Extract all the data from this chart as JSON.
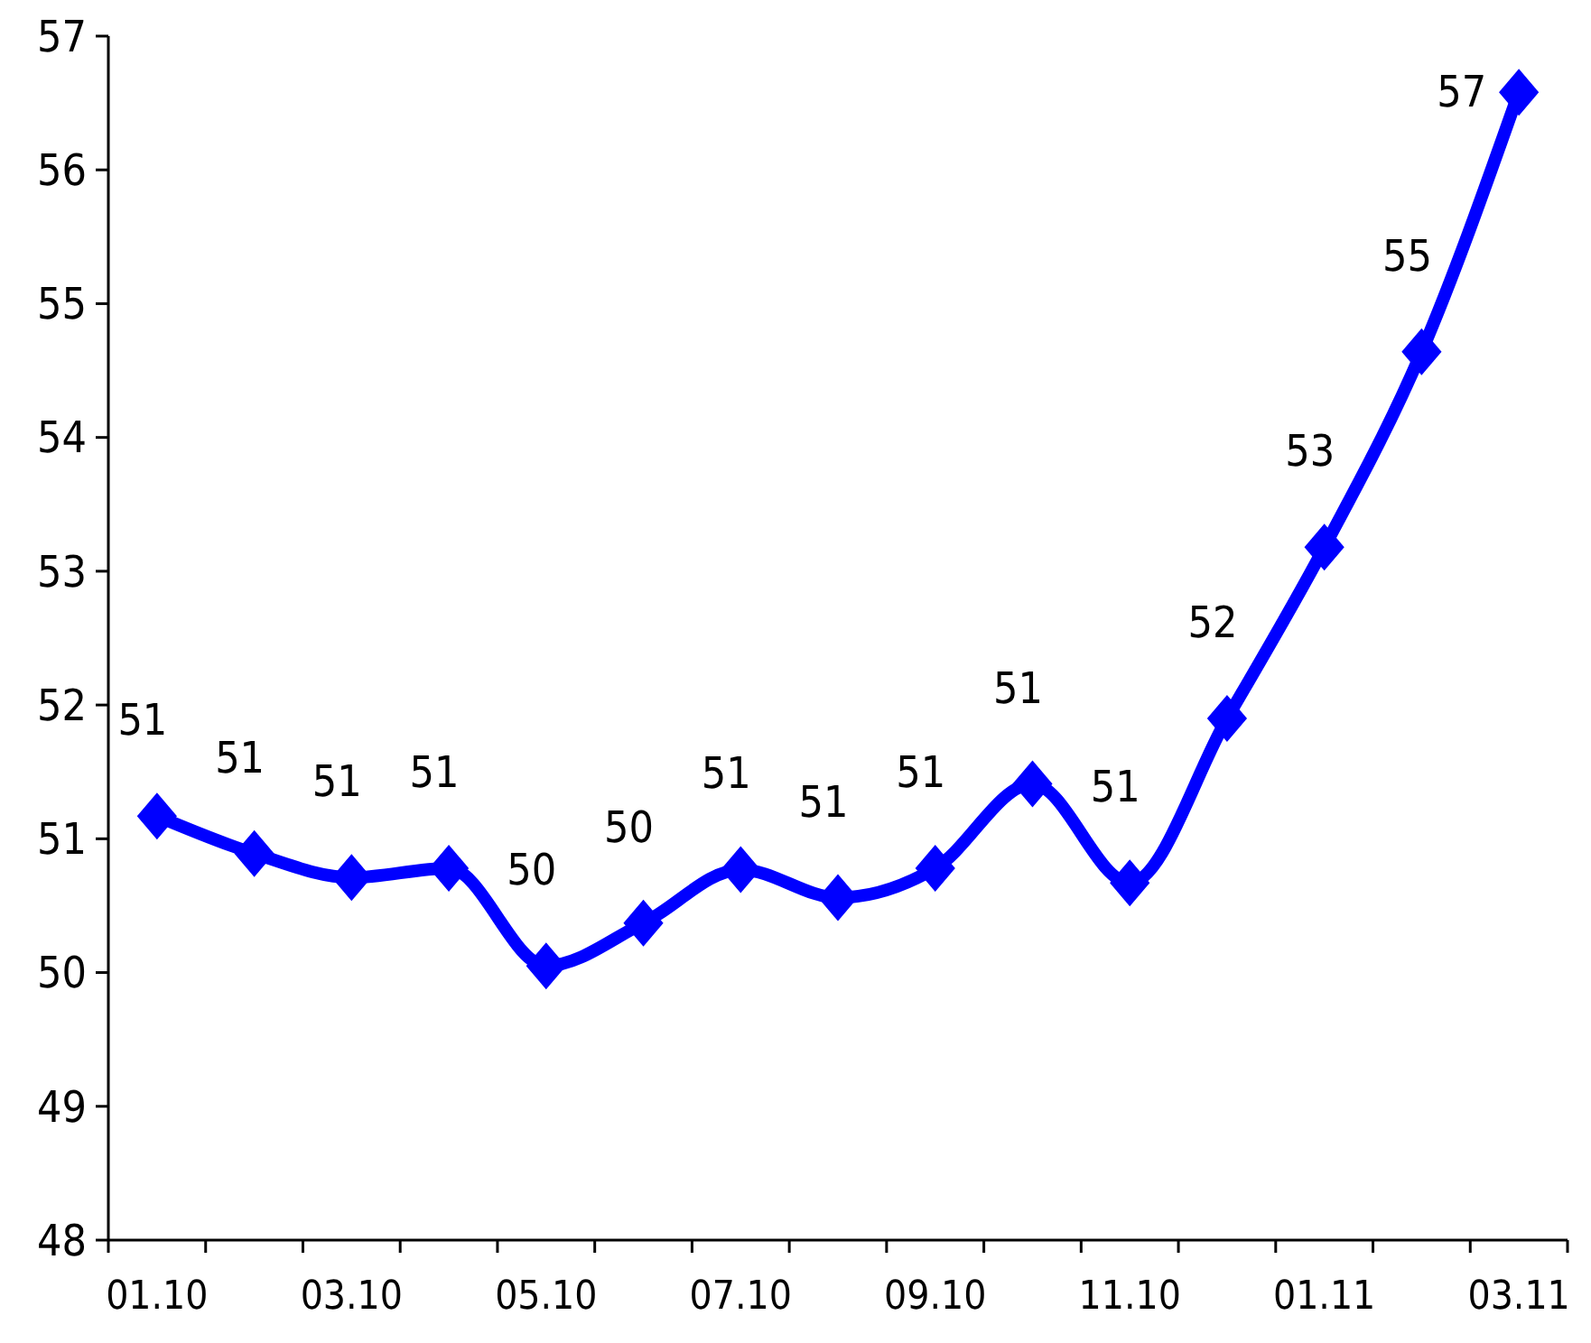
{
  "chart_data": {
    "type": "line",
    "categories": [
      "01.10",
      null,
      "03.10",
      null,
      "05.10",
      null,
      "07.10",
      null,
      "09.10",
      null,
      "11.10",
      null,
      "01.11",
      null,
      "03.11"
    ],
    "series": [
      {
        "color": "#0000ff",
        "values": [
          51.17,
          50.89,
          50.71,
          50.78,
          50.05,
          50.37,
          50.77,
          50.56,
          50.78,
          51.41,
          50.67,
          51.9,
          53.18,
          54.64,
          56.58
        ],
        "value_labels": [
          "51",
          "51",
          "51",
          "51",
          "50",
          "50",
          "51",
          "51",
          "51",
          "51",
          "51",
          "52",
          "53",
          "55",
          "57"
        ]
      }
    ],
    "ylim": [
      48,
      57
    ],
    "yticks": [
      48,
      49,
      50,
      51,
      52,
      53,
      54,
      55,
      56,
      57
    ],
    "grid": false,
    "marker": "diamond",
    "line_style": "solid"
  }
}
